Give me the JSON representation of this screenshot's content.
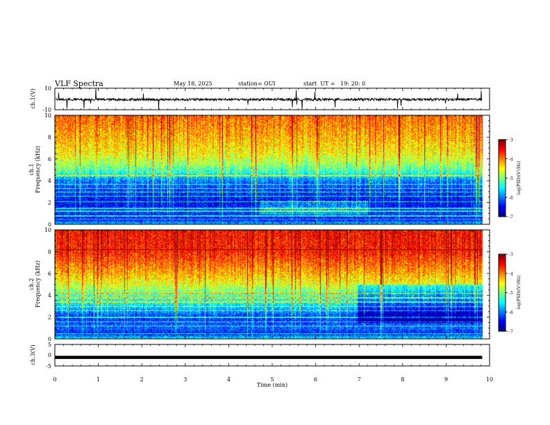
{
  "header": {
    "title": "VLF Spectra",
    "date": "May 18, 2025",
    "station": "station= OUI",
    "start_time": "start  UT =   19: 20: 0"
  },
  "chart_data": [
    {
      "type": "line",
      "panel": "waveform-ch1",
      "ylabel": "ch.1(V)",
      "ylim": [
        -10,
        10
      ],
      "yticks": [
        "10",
        "-10"
      ],
      "description_values": "noisy baseline near -0.5 V with impulsive spikes"
    },
    {
      "type": "heatmap",
      "panel": "spectrogram-ch1",
      "ylabel_line1": "ch.1",
      "ylabel_line2": "Frequency (kHz)",
      "ylim": [
        0,
        10
      ],
      "yticks": [
        "0",
        "2",
        "4",
        "6",
        "8",
        "10"
      ],
      "colorbar": {
        "label": "log(PSD)(V²/Hz)",
        "ticks": [
          "-3",
          "-4",
          "-5",
          "-6",
          "-7"
        ],
        "range": [
          -7,
          -3
        ],
        "colormap": "jet"
      },
      "profile": [
        [
          0,
          -5.6
        ],
        [
          0.5,
          -6.5
        ],
        [
          1.0,
          -6.3
        ],
        [
          2.0,
          -6.5
        ],
        [
          3.0,
          -6.3
        ],
        [
          4.0,
          -6.0
        ],
        [
          4.8,
          -5.3
        ],
        [
          5.5,
          -4.9
        ],
        [
          6.5,
          -4.5
        ],
        [
          8.0,
          -4.2
        ],
        [
          10.0,
          -3.9
        ]
      ],
      "lines_khz": [
        0.5,
        0.8,
        1.25,
        1.5,
        2.1,
        2.6,
        3.0,
        3.3,
        3.7,
        4.5
      ]
    },
    {
      "type": "heatmap",
      "panel": "spectrogram-ch2",
      "ylabel_line1": "ch.2",
      "ylabel_line2": "Frequency (kHz)",
      "ylim": [
        0,
        10
      ],
      "yticks": [
        "0",
        "2",
        "4",
        "6",
        "8",
        "10"
      ],
      "colorbar": {
        "label": "log(PSD)(V²/Hz)",
        "ticks": [
          "-3",
          "-4",
          "-5",
          "-6",
          "-7"
        ],
        "range": [
          -7,
          -3
        ],
        "colormap": "jet"
      },
      "profile": [
        [
          0,
          -5.4
        ],
        [
          0.5,
          -6.4
        ],
        [
          1.0,
          -6.1
        ],
        [
          2.0,
          -6.3
        ],
        [
          3.0,
          -5.6
        ],
        [
          4.0,
          -5.2
        ],
        [
          5.0,
          -4.6
        ],
        [
          6.0,
          -4.2
        ],
        [
          7.0,
          -3.9
        ],
        [
          8.0,
          -3.6
        ],
        [
          10.0,
          -3.5
        ]
      ],
      "lines_khz": [
        0.5,
        1.2,
        1.6,
        2.0,
        2.6,
        3.0,
        3.4,
        3.8,
        4.2,
        8.2
      ],
      "transition_min": 6.95
    },
    {
      "type": "line",
      "panel": "waveform-ch3",
      "ylabel": "ch.3(V)",
      "ylim": [
        -5,
        5
      ],
      "yticks": [
        "5",
        "0",
        "-5"
      ],
      "x": [
        0,
        9.83
      ],
      "y": [
        -1,
        -1
      ]
    }
  ],
  "x_axis": {
    "label": "Time (min)",
    "range": [
      0,
      10
    ],
    "ticks": [
      "0",
      "1",
      "2",
      "3",
      "4",
      "5",
      "6",
      "7",
      "8",
      "9",
      "10"
    ]
  }
}
